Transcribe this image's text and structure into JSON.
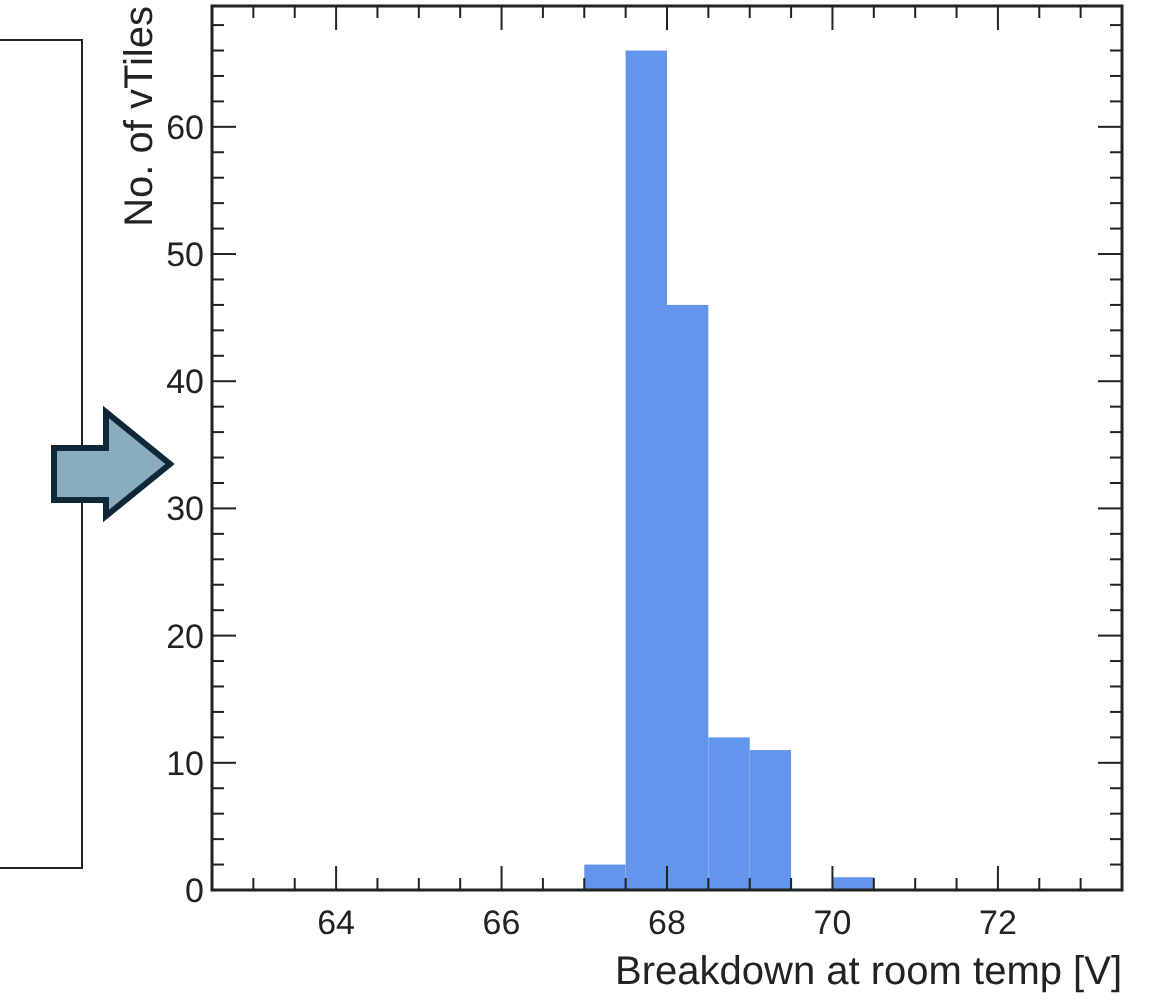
{
  "chart_data": {
    "type": "histogram",
    "xlabel": "Breakdown at room temp [V]",
    "ylabel": "No. of vTiles",
    "bins": [
      67,
      67.5,
      68,
      68.5,
      69,
      69.5,
      70,
      70.5
    ],
    "values": [
      2,
      66,
      46,
      12,
      11,
      0,
      1
    ],
    "color": "#6495ed",
    "xlim": [
      62.5,
      73.5
    ],
    "xticks": [
      {
        "value": 62.5,
        "label": null
      },
      {
        "value": 63,
        "label": null
      },
      {
        "value": 63.5,
        "label": null
      },
      64,
      {
        "value": 64.5,
        "label": null
      },
      {
        "value": 65,
        "label": null
      },
      {
        "value": 65.5,
        "label": null
      },
      66,
      {
        "value": 66.5,
        "label": null
      },
      {
        "value": 67,
        "label": null
      },
      {
        "value": 67.5,
        "label": null
      },
      68,
      {
        "value": 68.5,
        "label": null
      },
      {
        "value": 69,
        "label": null
      },
      {
        "value": 69.5,
        "label": null
      },
      70,
      {
        "value": 70.5,
        "label": null
      },
      {
        "value": 71,
        "label": null
      },
      {
        "value": 71.5,
        "label": null
      },
      72,
      {
        "value": 72.5,
        "label": null
      },
      {
        "value": 73,
        "label": null
      }
    ],
    "ylim": [
      0,
      69.5
    ],
    "yticks": [
      0,
      {
        "value": 2,
        "label": null
      },
      {
        "value": 4,
        "label": null
      },
      {
        "value": 6,
        "label": null
      },
      {
        "value": 8,
        "label": null
      },
      10,
      {
        "value": 12,
        "label": null
      },
      {
        "value": 14,
        "label": null
      },
      {
        "value": 16,
        "label": null
      },
      {
        "value": 18,
        "label": null
      },
      20,
      {
        "value": 22,
        "label": null
      },
      {
        "value": 24,
        "label": null
      },
      {
        "value": 26,
        "label": null
      },
      {
        "value": 28,
        "label": null
      },
      30,
      {
        "value": 32,
        "label": null
      },
      {
        "value": 34,
        "label": null
      },
      {
        "value": 36,
        "label": null
      },
      {
        "value": 38,
        "label": null
      },
      40,
      {
        "value": 42,
        "label": null
      },
      {
        "value": 44,
        "label": null
      },
      {
        "value": 46,
        "label": null
      },
      {
        "value": 48,
        "label": null
      },
      50,
      {
        "value": 52,
        "label": null
      },
      {
        "value": 54,
        "label": null
      },
      {
        "value": 56,
        "label": null
      },
      {
        "value": 58,
        "label": null
      },
      60,
      {
        "value": 62,
        "label": null
      },
      {
        "value": 64,
        "label": null
      },
      {
        "value": 66,
        "label": null
      },
      {
        "value": 68,
        "label": null
      }
    ],
    "grid": false
  }
}
